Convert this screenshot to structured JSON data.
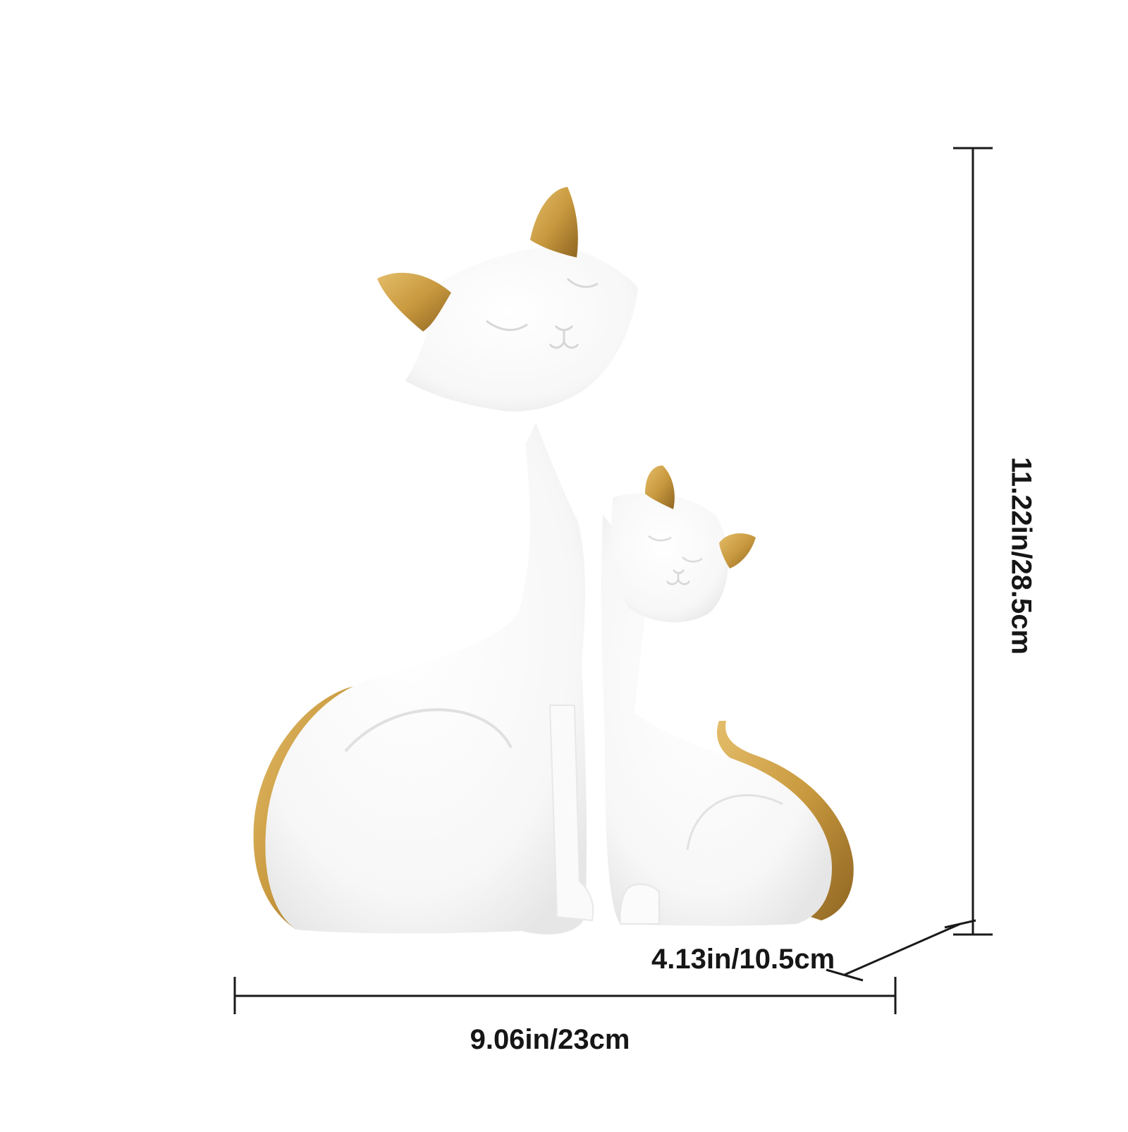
{
  "product": {
    "description": "White ceramic cat figurine pair with gold ears and tails",
    "colors": {
      "body": "#fdfdfd",
      "shade": "#ececec",
      "gold": "#c99a3f",
      "gold_dark": "#9c7127",
      "line": "#1a1a1a"
    }
  },
  "dimensions": {
    "width": "9.06in/23cm",
    "depth": "4.13in/10.5cm",
    "height": "11.22in/28.5cm"
  }
}
